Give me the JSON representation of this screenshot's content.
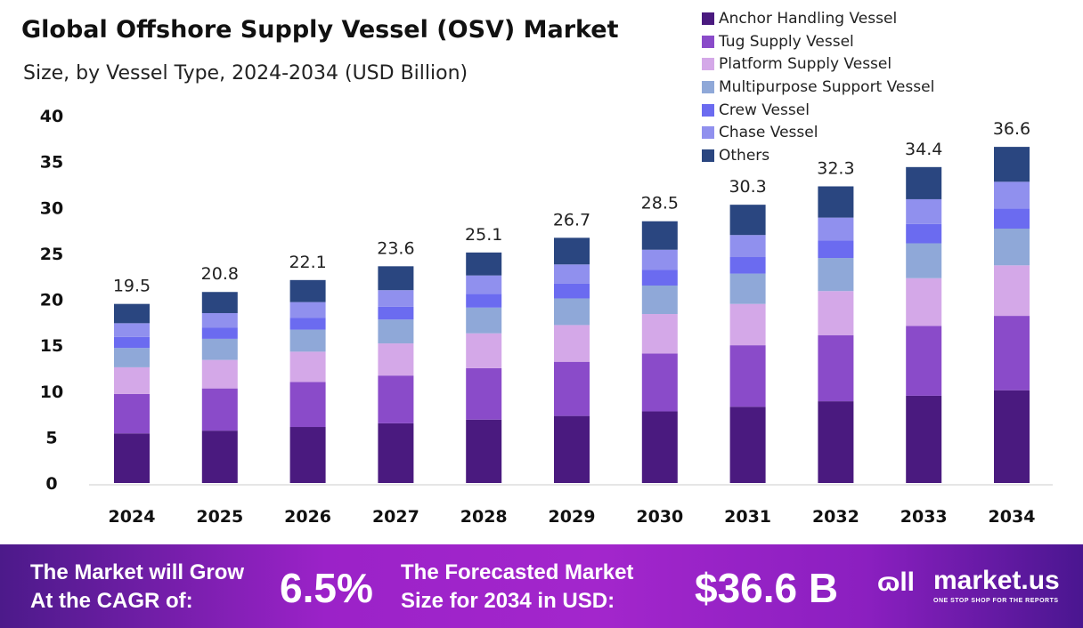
{
  "chart_data": {
    "type": "bar",
    "stacked": true,
    "title": "Global Offshore Supply Vessel (OSV) Market",
    "subtitle": "Size, by  Vessel Type, 2024-2034 (USD Billion)",
    "categories": [
      "2024",
      "2025",
      "2026",
      "2027",
      "2028",
      "2029",
      "2030",
      "2031",
      "2032",
      "2033",
      "2034"
    ],
    "totals": [
      19.5,
      20.8,
      22.1,
      23.6,
      25.1,
      26.7,
      28.5,
      30.3,
      32.3,
      34.4,
      36.6
    ],
    "total_labels": [
      "19.5",
      "20.8",
      "22.1",
      "23.6",
      "25.1",
      "26.7",
      "28.5",
      "30.3",
      "32.3",
      "34.4",
      "36.6"
    ],
    "yticks": [
      "0",
      "5",
      "10",
      "15",
      "20",
      "25",
      "30",
      "35",
      "40"
    ],
    "ylim": [
      0,
      40
    ],
    "grid": false,
    "legend_position": "top-right",
    "series": [
      {
        "name": "Anchor Handling Vessel",
        "color": "#4a1a7f",
        "values": [
          5.4,
          5.7,
          6.1,
          6.5,
          6.9,
          7.3,
          7.8,
          8.3,
          8.9,
          9.5,
          10.1
        ]
      },
      {
        "name": "Tug Supply Vessel",
        "color": "#8a4bc9",
        "values": [
          4.3,
          4.6,
          4.9,
          5.2,
          5.6,
          5.9,
          6.3,
          6.7,
          7.2,
          7.6,
          8.1
        ]
      },
      {
        "name": "Platform Supply Vessel",
        "color": "#d4a8e8",
        "values": [
          2.9,
          3.1,
          3.3,
          3.5,
          3.8,
          4.0,
          4.3,
          4.5,
          4.8,
          5.2,
          5.5
        ]
      },
      {
        "name": "Multipurpose Support Vessel",
        "color": "#8fa8d8",
        "values": [
          2.1,
          2.3,
          2.4,
          2.6,
          2.8,
          2.9,
          3.1,
          3.3,
          3.6,
          3.8,
          4.0
        ]
      },
      {
        "name": "Crew Vessel",
        "color": "#6b6bf0",
        "values": [
          1.2,
          1.2,
          1.3,
          1.4,
          1.5,
          1.6,
          1.7,
          1.8,
          1.9,
          2.1,
          2.2
        ]
      },
      {
        "name": "Chase Vessel",
        "color": "#9090ee",
        "values": [
          1.5,
          1.6,
          1.7,
          1.8,
          2.0,
          2.1,
          2.2,
          2.4,
          2.5,
          2.7,
          2.9
        ]
      },
      {
        "name": "Others",
        "color": "#2a4680",
        "values": [
          2.1,
          2.3,
          2.4,
          2.6,
          2.5,
          2.9,
          3.1,
          3.3,
          3.4,
          3.5,
          3.8
        ]
      }
    ]
  },
  "banner": {
    "grow_line1": "The Market will Grow",
    "grow_line2": "At the CAGR of:",
    "cagr": "6.5%",
    "forecast_line1": "The Forecasted Market",
    "forecast_line2": "Size for 2034 in USD:",
    "size": "$36.6 B",
    "brand": "market.us",
    "tagline": "ONE STOP SHOP FOR THE REPORTS"
  }
}
